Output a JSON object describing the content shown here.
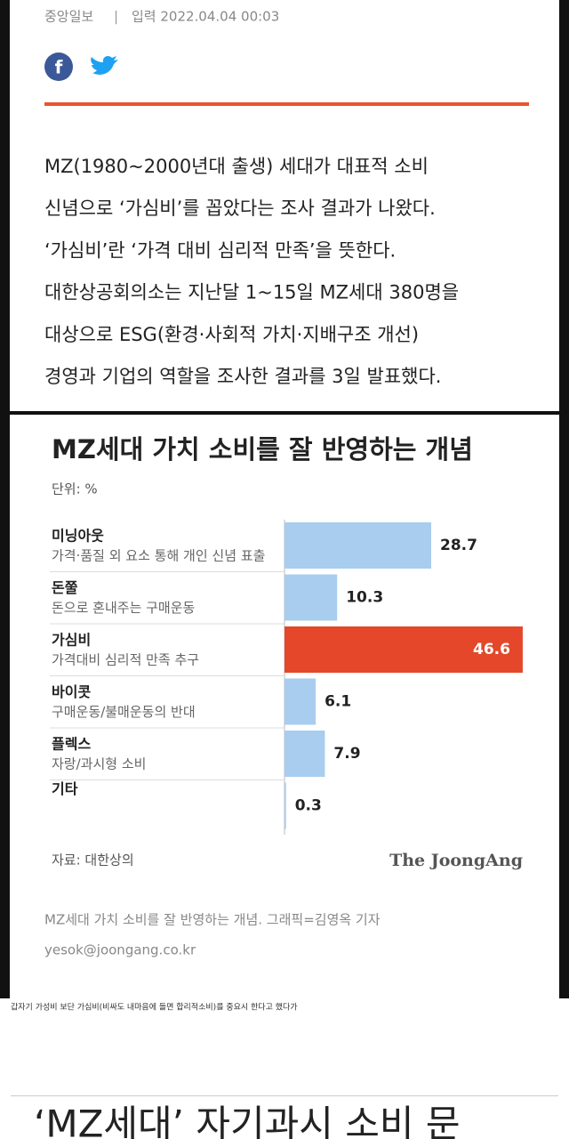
{
  "header": {
    "source": "중앙일보",
    "separator": "|",
    "date": "입력 2022.04.04 00:03"
  },
  "article": {
    "lines": [
      "MZ(1980~2000년대 출생) 세대가 대표적 소비",
      "신념으로 ‘가심비’를 꼽았다는 조사 결과가 나왔다.",
      "‘가심비’란 ‘가격 대비 심리적 만족’을 뜻한다.",
      "대한상공회의소는 지난달 1~15일 MZ세대 380명을",
      "대상으로 ESG(환경·사회적 가치·지배구조 개선)",
      "경영과 기업의 역할을 조사한 결과를 3일 발표했다."
    ]
  },
  "chart": {
    "type": "bar",
    "title": "MZ세대 가치 소비를 잘 반영하는 개념",
    "unit": "단위: %",
    "categories": [
      "미닝아웃",
      "돈쭐",
      "가심비",
      "바이콧",
      "플렉스",
      "기타"
    ],
    "descriptions": [
      "가격·품질 외 요소 통해 개인 신념 표출",
      "돈으로 혼내주는 구매운동",
      "가격대비 심리적 만족 추구",
      "구매운동/불매운동의 반대",
      "자랑/과시형 소비",
      null
    ],
    "values": [
      28.7,
      10.3,
      46.6,
      6.1,
      7.9,
      0.3
    ],
    "colors": [
      "#a8cdee",
      "#a8cdee",
      "#e4472a",
      "#a8cdee",
      "#a8cdee",
      "#a8cdee"
    ],
    "source": "자료: 대한상의",
    "brand": "The JoongAng"
  },
  "caption": "MZ세대 가치 소비를 잘 반영하는 개념. 그래픽=김영옥 기자",
  "email": "yesok@joongang.co.kr",
  "comment": "갑자기 가성비 보단 가심비(비싸도 내마음에 들면 합리적소비)를 중요시 한다고 했다가",
  "next_headline": "‘MZ세대’ 자기과시 소비 문"
}
